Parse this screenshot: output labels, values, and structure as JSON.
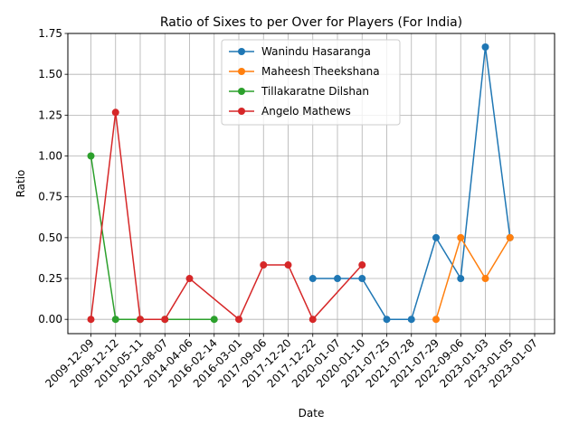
{
  "chart_data": {
    "type": "line",
    "title": "Ratio of Sixes to per Over for Players (For India)",
    "xlabel": "Date",
    "ylabel": "Ratio",
    "categories": [
      "2009-12-09",
      "2009-12-12",
      "2010-05-11",
      "2012-08-07",
      "2014-04-06",
      "2016-02-14",
      "2016-03-01",
      "2017-09-06",
      "2017-12-20",
      "2017-12-22",
      "2020-01-07",
      "2020-01-10",
      "2021-07-25",
      "2021-07-28",
      "2021-07-29",
      "2022-09-06",
      "2023-01-03",
      "2023-01-05",
      "2023-01-07"
    ],
    "ylim": [
      -0.0875,
      1.75
    ],
    "yticks": [
      0.0,
      0.25,
      0.5,
      0.75,
      1.0,
      1.25,
      1.5,
      1.75
    ],
    "grid": true,
    "legend_position": "top-center",
    "series": [
      {
        "name": "Wanindu Hasaranga",
        "color": "#1f77b4",
        "points": [
          {
            "x": "2017-12-22",
            "y": 0.25
          },
          {
            "x": "2020-01-07",
            "y": 0.25
          },
          {
            "x": "2020-01-10",
            "y": 0.25
          },
          {
            "x": "2021-07-25",
            "y": 0.0
          },
          {
            "x": "2021-07-28",
            "y": 0.0
          },
          {
            "x": "2021-07-29",
            "y": 0.5
          },
          {
            "x": "2022-09-06",
            "y": 0.25
          },
          {
            "x": "2023-01-03",
            "y": 1.667
          },
          {
            "x": "2023-01-05",
            "y": 0.5
          }
        ]
      },
      {
        "name": "Maheesh Theekshana",
        "color": "#ff7f0e",
        "points": [
          {
            "x": "2021-07-29",
            "y": 0.0
          },
          {
            "x": "2022-09-06",
            "y": 0.5
          },
          {
            "x": "2023-01-03",
            "y": 0.25
          },
          {
            "x": "2023-01-05",
            "y": 0.5
          }
        ]
      },
      {
        "name": "Tillakaratne Dilshan",
        "color": "#2ca02c",
        "points": [
          {
            "x": "2009-12-09",
            "y": 1.0
          },
          {
            "x": "2009-12-12",
            "y": 0.0
          },
          {
            "x": "2010-05-11",
            "y": 0.0
          },
          {
            "x": "2012-08-07",
            "y": 0.0
          },
          {
            "x": "2016-02-14",
            "y": 0.0
          }
        ]
      },
      {
        "name": "Angelo Mathews",
        "color": "#d62728",
        "points": [
          {
            "x": "2009-12-09",
            "y": 0.0
          },
          {
            "x": "2009-12-12",
            "y": 1.267
          },
          {
            "x": "2010-05-11",
            "y": 0.0
          },
          {
            "x": "2012-08-07",
            "y": 0.0
          },
          {
            "x": "2014-04-06",
            "y": 0.25
          },
          {
            "x": "2016-03-01",
            "y": 0.0
          },
          {
            "x": "2017-09-06",
            "y": 0.333
          },
          {
            "x": "2017-12-20",
            "y": 0.333
          },
          {
            "x": "2017-12-22",
            "y": 0.0
          },
          {
            "x": "2020-01-10",
            "y": 0.333
          }
        ]
      }
    ]
  }
}
